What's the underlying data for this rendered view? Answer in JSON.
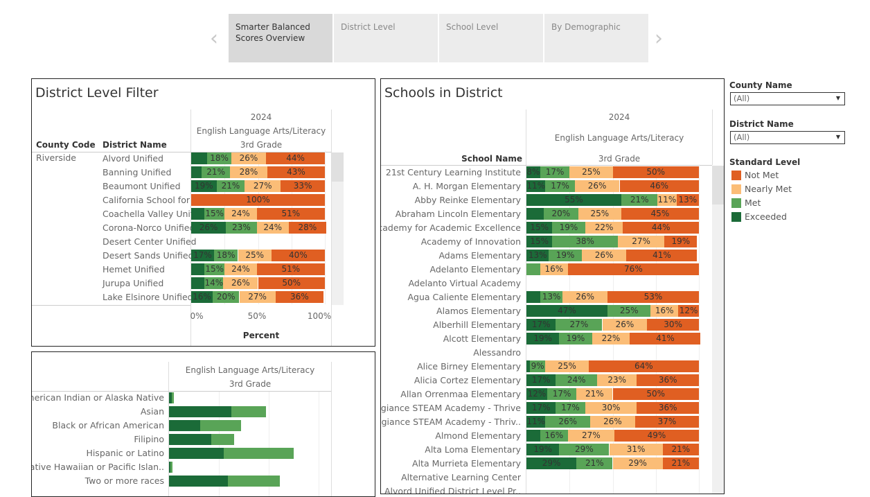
{
  "nav": {
    "tabs": [
      {
        "label": "Smarter Balanced Scores Overview",
        "active": true
      },
      {
        "label": "District Level",
        "active": false
      },
      {
        "label": "School Level",
        "active": false
      },
      {
        "label": "By Demographic",
        "active": false
      }
    ],
    "prev_icon": "chevron-left-icon",
    "next_icon": "chevron-right-icon"
  },
  "colors": {
    "Exceeded": "#1b6b38",
    "Met": "#59a457",
    "Nearly Met": "#fbbd77",
    "Not Met": "#e05f22"
  },
  "district_panel": {
    "title": "District Level Filter",
    "year": "2024",
    "subject": "English Language Arts/Literacy",
    "grade": "3rd Grade",
    "col_county": "County Code",
    "col_district": "District Name",
    "county": "Riverside",
    "axis_ticks": [
      "0%",
      "50%",
      "100%"
    ],
    "axis_label": "Percent",
    "rows": [
      {
        "name": "Alvord Unified",
        "pct": [
          12,
          18,
          26,
          44
        ],
        "hidden": [
          0
        ]
      },
      {
        "name": "Banning Unified",
        "pct": [
          8,
          21,
          28,
          43
        ],
        "hidden": [
          0
        ]
      },
      {
        "name": "Beaumont Unified",
        "pct": [
          19,
          21,
          27,
          33
        ],
        "hidden": []
      },
      {
        "name": "California School for ..",
        "pct": [
          0,
          0,
          0,
          100
        ],
        "hidden": [
          0,
          1,
          2
        ]
      },
      {
        "name": "Coachella Valley Unif..",
        "pct": [
          10,
          15,
          24,
          51
        ],
        "hidden": [
          0
        ]
      },
      {
        "name": "Corona-Norco Unified",
        "pct": [
          26,
          23,
          24,
          28
        ],
        "hidden": []
      },
      {
        "name": "Desert Center Unified",
        "pct": null,
        "hidden": []
      },
      {
        "name": "Desert Sands Unified",
        "pct": [
          17,
          18,
          25,
          40
        ],
        "hidden": []
      },
      {
        "name": "Hemet Unified",
        "pct": [
          10,
          15,
          24,
          51
        ],
        "hidden": [
          0
        ]
      },
      {
        "name": "Jurupa Unified",
        "pct": [
          10,
          14,
          26,
          50
        ],
        "hidden": [
          0
        ]
      },
      {
        "name": "Lake Elsinore Unified",
        "pct": [
          16,
          20,
          27,
          36
        ],
        "hidden": []
      }
    ]
  },
  "demographic_panel": {
    "subject": "English Language Arts/Literacy",
    "grade": "3rd Grade",
    "rows": [
      {
        "name": "American Indian or Alaska Native",
        "exceeded": 1,
        "met": 1
      },
      {
        "name": "Asian",
        "exceeded": 25,
        "met": 14
      },
      {
        "name": "Black or African American",
        "exceeded": 12.5,
        "met": 16.5
      },
      {
        "name": "Filipino",
        "exceeded": 17,
        "met": 9
      },
      {
        "name": "Hispanic or Latino",
        "exceeded": 22,
        "met": 28
      },
      {
        "name": "Native Hawaiian or Pacific Islan..",
        "exceeded": 0.5,
        "met": 1
      },
      {
        "name": "Two or more races",
        "exceeded": 23.5,
        "met": 21
      }
    ]
  },
  "schools_panel": {
    "title": "Schools in District",
    "year": "2024",
    "subject": "English Language Arts/Literacy",
    "grade": "3rd Grade",
    "col_school": "School Name",
    "rows": [
      {
        "name": "21st Century Learning Institute",
        "pct": [
          8,
          17,
          25,
          50
        ],
        "hidden": []
      },
      {
        "name": "A. H. Morgan Elementary",
        "pct": [
          11,
          17,
          26,
          46
        ],
        "hidden": []
      },
      {
        "name": "Abby Reinke Elementary",
        "pct": [
          55,
          21,
          11,
          13
        ],
        "hidden": []
      },
      {
        "name": "Abraham Lincoln Elementary",
        "pct": [
          10,
          20,
          25,
          45
        ],
        "hidden": [
          0
        ]
      },
      {
        "name": "Academy for Academic Excellence",
        "pct": [
          15,
          19,
          22,
          44
        ],
        "hidden": []
      },
      {
        "name": "Academy of Innovation",
        "pct": [
          15,
          38,
          27,
          19
        ],
        "hidden": []
      },
      {
        "name": "Adams Elementary",
        "pct": [
          13,
          19,
          26,
          41
        ],
        "hidden": []
      },
      {
        "name": "Adelanto Elementary",
        "pct": [
          0,
          8,
          16,
          76
        ],
        "hidden": [
          0,
          1
        ]
      },
      {
        "name": "Adelanto Virtual Academy",
        "pct": null,
        "hidden": []
      },
      {
        "name": "Agua Caliente Elementary",
        "pct": [
          8,
          13,
          26,
          53
        ],
        "hidden": [
          0
        ]
      },
      {
        "name": "Alamos Elementary",
        "pct": [
          47,
          25,
          16,
          12
        ],
        "hidden": []
      },
      {
        "name": "Alberhill Elementary",
        "pct": [
          17,
          27,
          26,
          30
        ],
        "hidden": []
      },
      {
        "name": "Alcott Elementary",
        "pct": [
          19,
          19,
          22,
          41
        ],
        "hidden": []
      },
      {
        "name": "Alessandro",
        "pct": null,
        "hidden": []
      },
      {
        "name": "Alice Birney Elementary",
        "pct": [
          2,
          9,
          25,
          64
        ],
        "hidden": [
          0
        ]
      },
      {
        "name": "Alicia Cortez Elementary",
        "pct": [
          17,
          24,
          23,
          36
        ],
        "hidden": []
      },
      {
        "name": "Allan Orrenmaa Elementary",
        "pct": [
          12,
          17,
          21,
          50
        ],
        "hidden": []
      },
      {
        "name": "Allegiance STEAM Academy - Thrive",
        "pct": [
          17,
          17,
          30,
          36
        ],
        "hidden": []
      },
      {
        "name": "Allegiance STEAM Academy - Thriv..",
        "pct": [
          11,
          26,
          26,
          37
        ],
        "hidden": []
      },
      {
        "name": "Almond Elementary",
        "pct": [
          8,
          16,
          27,
          49
        ],
        "hidden": [
          0
        ]
      },
      {
        "name": "Alta Loma Elementary",
        "pct": [
          19,
          29,
          31,
          21
        ],
        "hidden": []
      },
      {
        "name": "Alta Murrieta Elementary",
        "pct": [
          29,
          21,
          29,
          21
        ],
        "hidden": []
      },
      {
        "name": "Alternative Learning Center",
        "pct": null,
        "hidden": []
      },
      {
        "name": "Alvord Unified District Level Pr..",
        "pct": null,
        "hidden": []
      }
    ]
  },
  "filters": {
    "county_label": "County Name",
    "county_value": "(All)",
    "district_label": "District Name",
    "district_value": "(All)"
  },
  "legend": {
    "title": "Standard Level",
    "items": [
      "Not Met",
      "Nearly Met",
      "Met",
      "Exceeded"
    ]
  }
}
